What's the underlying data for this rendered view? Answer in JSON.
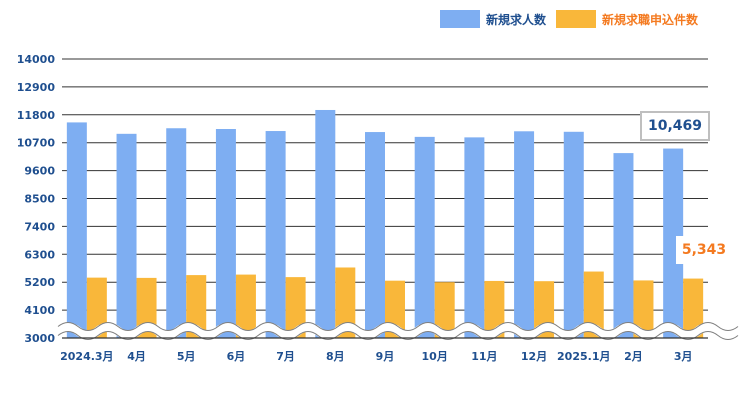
{
  "colors": {
    "job_openings": "#7eaef2",
    "job_seekers": "#f9b73a",
    "axis_text": "#1f4f8f",
    "callout_blue": "#1f4f8f",
    "callout_orange": "#f47a20",
    "gridline": "#333333"
  },
  "legend": {
    "job_openings": "新規求人数",
    "job_seekers": "新規求職申込件数"
  },
  "callouts": {
    "job_openings_latest": "10,469",
    "job_seekers_latest": "5,343"
  },
  "chart_data": {
    "type": "bar",
    "categories": [
      "2024.3月",
      "4月",
      "5月",
      "6月",
      "7月",
      "8月",
      "9月",
      "10月",
      "11月",
      "12月",
      "2025.1月",
      "2月",
      "3月"
    ],
    "series": [
      {
        "name": "新規求人数",
        "values": [
          11500,
          11050,
          11270,
          11240,
          11160,
          11990,
          11120,
          10930,
          10910,
          11150,
          11130,
          10290,
          10469
        ]
      },
      {
        "name": "新規求職申込件数",
        "values": [
          5380,
          5370,
          5480,
          5500,
          5400,
          5780,
          5260,
          5200,
          5250,
          5240,
          5620,
          5270,
          5343
        ]
      }
    ],
    "yticks": [
      3000,
      4100,
      5200,
      6300,
      7400,
      8500,
      9600,
      10700,
      11800,
      12900,
      14000
    ],
    "ylim": [
      3000,
      14000
    ],
    "axis_break": true,
    "grid": true,
    "legend_position": "top-right"
  }
}
